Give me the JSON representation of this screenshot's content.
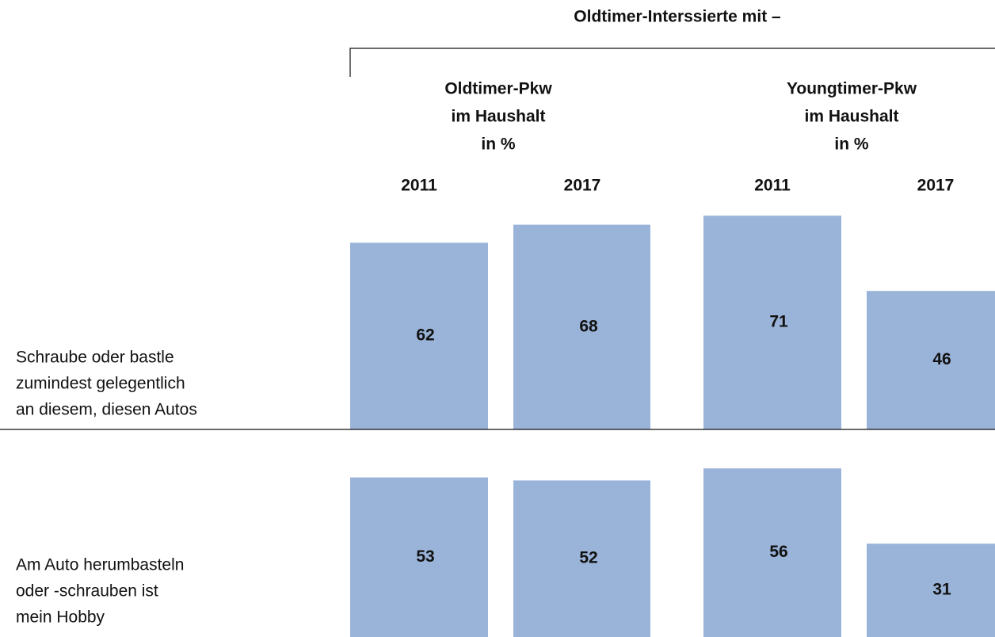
{
  "chart_data": {
    "type": "bar",
    "title": "Oldtimer-Interssierte mit –",
    "groups": [
      {
        "label": [
          "Oldtimer-Pkw",
          "im Haushalt",
          "in %"
        ]
      },
      {
        "label": [
          "Youngtimer-Pkw",
          "im Haushalt",
          "in %"
        ]
      }
    ],
    "categories": [
      "2011",
      "2017",
      "2011",
      "2017"
    ],
    "color": "#9ab3d8",
    "ylim": [
      0,
      75
    ],
    "series": [
      {
        "label": [
          "Schraube oder bastle",
          "zumindest gelegentlich",
          "an diesem, diesen Autos"
        ],
        "values": [
          62,
          68,
          71,
          46
        ]
      },
      {
        "label": [
          "Am Auto herumbasteln",
          "oder -schrauben ist",
          "mein Hobby"
        ],
        "values": [
          53,
          52,
          56,
          31
        ]
      }
    ]
  }
}
